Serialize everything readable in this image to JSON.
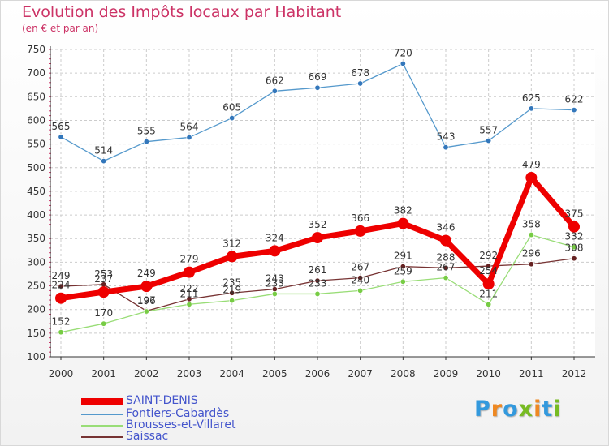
{
  "title": "Evolution des Impôts locaux par Habitant",
  "subtitle": "(en € et par an)",
  "logo": {
    "text": "Proxiti",
    "colors": [
      "#3399dd",
      "#ee8822",
      "#3399dd",
      "#77bb22",
      "#ee8822",
      "#3399dd",
      "#77bb22"
    ]
  },
  "chart_data": {
    "type": "line",
    "title": "Evolution des Impôts locaux par Habitant",
    "ylabel": "(en € et par an)",
    "xlabel": "",
    "ylim": [
      100,
      750
    ],
    "yticks": [
      100,
      150,
      200,
      250,
      300,
      350,
      400,
      450,
      500,
      550,
      600,
      650,
      700,
      750
    ],
    "categories": [
      "2000",
      "2001",
      "2002",
      "2003",
      "2004",
      "2005",
      "2006",
      "2007",
      "2008",
      "2009",
      "2010",
      "2011",
      "2012"
    ],
    "grid": true,
    "legend_position": "bottom-left",
    "series": [
      {
        "name": "SAINT-DENIS",
        "color": "#ee0000",
        "dot": "#ee0000",
        "width": 7,
        "marker": 7,
        "values": [
          224,
          237,
          249,
          279,
          312,
          324,
          352,
          366,
          382,
          346,
          254,
          479,
          375
        ],
        "labels": [
          "224",
          "237",
          "249",
          "279",
          "312",
          "324",
          "352",
          "366",
          "382",
          "346",
          "254",
          "479",
          "375"
        ]
      },
      {
        "name": "Fontiers-Cabardès",
        "color": "#5599cc",
        "dot": "#3377bb",
        "width": 1.3,
        "marker": 3.2,
        "values": [
          565,
          514,
          555,
          564,
          605,
          662,
          669,
          678,
          720,
          543,
          557,
          625,
          622
        ],
        "labels": [
          "565",
          "514",
          "555",
          "564",
          "605",
          "662",
          "669",
          "678",
          "720",
          "543",
          "557",
          "625",
          "622"
        ]
      },
      {
        "name": "Brousses-et-Villaret",
        "color": "#99dd77",
        "dot": "#77cc44",
        "width": 1.3,
        "marker": 3.2,
        "values": [
          152,
          170,
          196,
          211,
          219,
          233,
          233,
          240,
          259,
          267,
          211,
          358,
          332
        ],
        "labels": [
          "152",
          "170",
          "196",
          "211",
          "219",
          "233",
          "233",
          "240",
          "259",
          "267",
          "211",
          "358",
          "332"
        ]
      },
      {
        "name": "Saissac",
        "color": "#773333",
        "dot": "#662222",
        "width": 1.3,
        "marker": 3.2,
        "values": [
          249,
          253,
          197,
          222,
          235,
          243,
          261,
          267,
          291,
          288,
          292,
          296,
          308
        ],
        "labels": [
          "249",
          "253",
          "197",
          "222",
          "235",
          "243",
          "261",
          "267",
          "291",
          "288",
          "292",
          "296",
          "308"
        ]
      }
    ]
  }
}
